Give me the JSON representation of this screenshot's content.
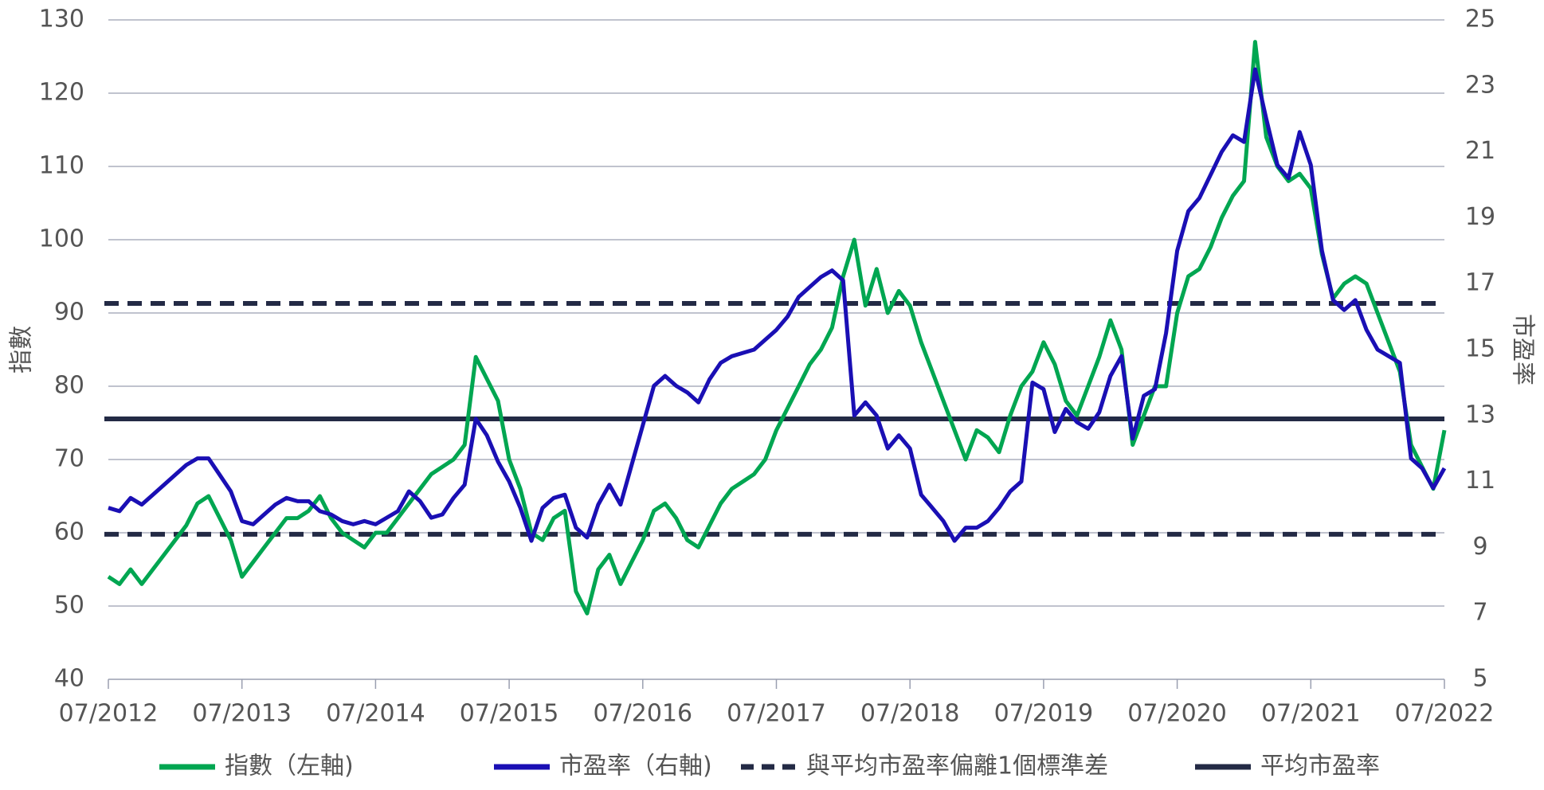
{
  "chart_data": {
    "type": "line",
    "x": [
      "07/2012",
      "08/2012",
      "09/2012",
      "10/2012",
      "11/2012",
      "12/2012",
      "01/2013",
      "02/2013",
      "03/2013",
      "04/2013",
      "05/2013",
      "06/2013",
      "07/2013",
      "08/2013",
      "09/2013",
      "10/2013",
      "11/2013",
      "12/2013",
      "01/2014",
      "02/2014",
      "03/2014",
      "04/2014",
      "05/2014",
      "06/2014",
      "07/2014",
      "08/2014",
      "09/2014",
      "10/2014",
      "11/2014",
      "12/2014",
      "01/2015",
      "02/2015",
      "03/2015",
      "04/2015",
      "05/2015",
      "06/2015",
      "07/2015",
      "08/2015",
      "09/2015",
      "10/2015",
      "11/2015",
      "12/2015",
      "01/2016",
      "02/2016",
      "03/2016",
      "04/2016",
      "05/2016",
      "06/2016",
      "07/2016",
      "08/2016",
      "09/2016",
      "10/2016",
      "11/2016",
      "12/2016",
      "01/2017",
      "02/2017",
      "03/2017",
      "04/2017",
      "05/2017",
      "06/2017",
      "07/2017",
      "08/2017",
      "09/2017",
      "10/2017",
      "11/2017",
      "12/2017",
      "01/2018",
      "02/2018",
      "03/2018",
      "04/2018",
      "05/2018",
      "06/2018",
      "07/2018",
      "08/2018",
      "09/2018",
      "10/2018",
      "11/2018",
      "12/2018",
      "01/2019",
      "02/2019",
      "03/2019",
      "04/2019",
      "05/2019",
      "06/2019",
      "07/2019",
      "08/2019",
      "09/2019",
      "10/2019",
      "11/2019",
      "12/2019",
      "01/2020",
      "02/2020",
      "03/2020",
      "04/2020",
      "05/2020",
      "06/2020",
      "07/2020",
      "08/2020",
      "09/2020",
      "10/2020",
      "11/2020",
      "12/2020",
      "01/2021",
      "02/2021",
      "03/2021",
      "04/2021",
      "05/2021",
      "06/2021",
      "07/2021",
      "08/2021",
      "09/2021",
      "10/2021",
      "11/2021",
      "12/2021",
      "01/2022",
      "02/2022",
      "03/2022",
      "04/2022",
      "05/2022",
      "06/2022",
      "07/2022"
    ],
    "xticks": [
      0,
      12,
      24,
      36,
      48,
      60,
      72,
      84,
      96,
      108,
      120
    ],
    "y_label": "指數",
    "y2_label": "市盈率",
    "ylim": [
      40,
      130
    ],
    "yticks": [
      40,
      50,
      60,
      70,
      80,
      90,
      100,
      110,
      120,
      130
    ],
    "y2lim": [
      5,
      25
    ],
    "y2ticks": [
      5,
      7,
      9,
      11,
      13,
      15,
      17,
      19,
      21,
      23,
      25
    ],
    "grid": true,
    "series": [
      {
        "name": "指數（左軸)",
        "color": "#00a651",
        "values": [
          54,
          53,
          55,
          53,
          55,
          57,
          59,
          61,
          64,
          65,
          62,
          59,
          54,
          56,
          58,
          60,
          62,
          62,
          63,
          65,
          62,
          60,
          59,
          58,
          60,
          60,
          62,
          64,
          66,
          68,
          69,
          70,
          72,
          84,
          81,
          78,
          70,
          66,
          60,
          59,
          62,
          63,
          52,
          49,
          55,
          57,
          53,
          56,
          59,
          63,
          64,
          62,
          59,
          58,
          61,
          64,
          66,
          67,
          68,
          70,
          74,
          77,
          80,
          83,
          85,
          88,
          95,
          100,
          91,
          96,
          90,
          93,
          91,
          86,
          82,
          78,
          74,
          70,
          74,
          73,
          71,
          76,
          80,
          82,
          86,
          83,
          78,
          76,
          80,
          84,
          89,
          85,
          72,
          76,
          80,
          80,
          90,
          95,
          96,
          99,
          103,
          106,
          108,
          127,
          114,
          110,
          108,
          109,
          107,
          98,
          92,
          94,
          95,
          94,
          90,
          86,
          82,
          72,
          69,
          66,
          74
        ]
      },
      {
        "name": "市盈率（右軸)",
        "color": "#1a0fb4",
        "axis": "y2",
        "values": [
          10.2,
          10.1,
          10.5,
          10.3,
          10.6,
          10.9,
          11.2,
          11.5,
          11.7,
          11.7,
          11.2,
          10.7,
          9.8,
          9.7,
          10.0,
          10.3,
          10.5,
          10.4,
          10.4,
          10.1,
          10.0,
          9.8,
          9.7,
          9.8,
          9.7,
          9.9,
          10.1,
          10.7,
          10.4,
          9.9,
          10.0,
          10.5,
          10.9,
          12.9,
          12.4,
          11.6,
          11.0,
          10.2,
          9.2,
          10.2,
          10.5,
          10.6,
          9.6,
          9.3,
          10.3,
          10.9,
          10.3,
          11.5,
          12.7,
          13.9,
          14.2,
          13.9,
          13.7,
          13.4,
          14.1,
          14.6,
          14.8,
          14.9,
          15.0,
          15.3,
          15.6,
          16.0,
          16.6,
          16.9,
          17.2,
          17.4,
          17.1,
          13.0,
          13.4,
          13.0,
          12.0,
          12.4,
          12.0,
          10.6,
          10.2,
          9.8,
          9.2,
          9.6,
          9.6,
          9.8,
          10.2,
          10.7,
          11.0,
          14.0,
          13.8,
          12.5,
          13.2,
          12.8,
          12.6,
          13.1,
          14.2,
          14.8,
          12.3,
          13.6,
          13.8,
          15.5,
          18.0,
          19.2,
          19.6,
          20.3,
          21.0,
          21.5,
          21.3,
          23.5,
          22.0,
          20.6,
          20.2,
          21.6,
          20.6,
          18.0,
          16.5,
          16.2,
          16.5,
          15.6,
          15.0,
          14.8,
          14.6,
          11.7,
          11.4,
          10.8,
          11.4
        ]
      }
    ],
    "reference_lines": [
      {
        "name": "與平均市盈率偏離1個標準差",
        "axis": "y2",
        "color": "#232a45",
        "dashed": true,
        "values": [
          16.4,
          9.4
        ]
      },
      {
        "name": "平均市盈率",
        "axis": "y2",
        "color": "#232a45",
        "dashed": false,
        "values": [
          12.9
        ]
      }
    ]
  }
}
